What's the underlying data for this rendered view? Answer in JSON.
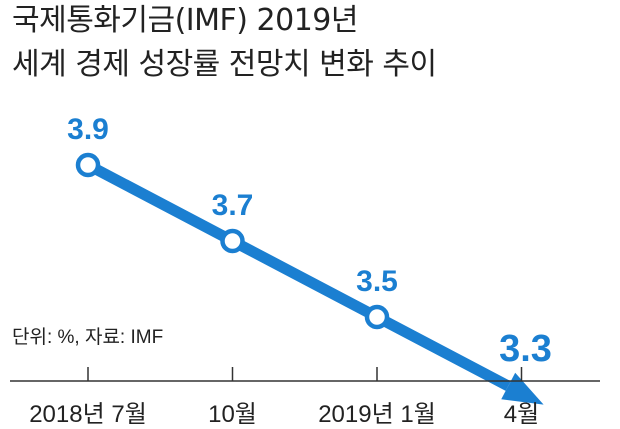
{
  "title": {
    "line1": "국제통화기금(IMF) 2019년",
    "line2": "세계 경제 성장률 전망치 변화 추이"
  },
  "source_note": "단위: %, 자료: IMF",
  "colors": {
    "accent": "#1b7fd1",
    "axis": "#333333",
    "text": "#222222",
    "marker_fill": "#ffffff"
  },
  "chart_data": {
    "type": "line",
    "title": "국제통화기금(IMF) 2019년 세계 경제 성장률 전망치 변화 추이",
    "categories": [
      "2018년 7월",
      "10월",
      "2019년 1월",
      "4월"
    ],
    "series": [
      {
        "values": [
          3.9,
          3.7,
          3.5,
          3.3
        ]
      }
    ],
    "data_labels": [
      "3.9",
      "3.7",
      "3.5",
      "3.3"
    ],
    "ylim": [
      3.1,
      4.0
    ],
    "grid": false,
    "y_axis_visible": false,
    "last_point_marker": "arrow"
  }
}
